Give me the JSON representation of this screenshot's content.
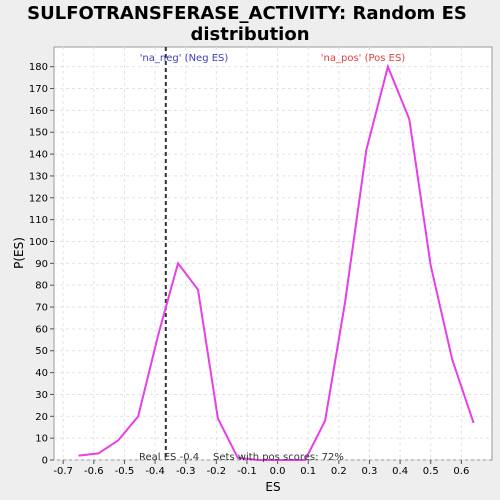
{
  "chart_data": {
    "type": "line",
    "title_line1": "SULFOTRANSFERASE_ACTIVITY: Random ES",
    "title_line2": "distribution",
    "xlabel": "ES",
    "ylabel": "P(ES)",
    "xlim": [
      -0.73,
      0.7
    ],
    "ylim": [
      0,
      189
    ],
    "x_ticks": [
      -0.7,
      -0.6,
      -0.5,
      -0.4,
      -0.3,
      -0.2,
      -0.1,
      0.0,
      0.1,
      0.2,
      0.3,
      0.4,
      0.5,
      0.6
    ],
    "x_tick_labels": [
      "-0.7",
      "-0.6",
      "-0.5",
      "-0.4",
      "-0.3",
      "-0.2",
      "-0.1",
      "0.0",
      "0.1",
      "0.2",
      "0.3",
      "0.4",
      "0.5",
      "0.6"
    ],
    "y_ticks": [
      0,
      10,
      20,
      30,
      40,
      50,
      60,
      70,
      80,
      90,
      100,
      110,
      120,
      130,
      140,
      150,
      160,
      170,
      180
    ],
    "grid": true,
    "series": [
      {
        "color": "#e640e6",
        "x": [
          -0.65,
          -0.585,
          -0.52,
          -0.455,
          -0.39,
          -0.325,
          -0.26,
          -0.195,
          -0.13,
          -0.065,
          0.0,
          0.09,
          0.155,
          0.22,
          0.29,
          0.36,
          0.43,
          0.5,
          0.57,
          0.64
        ],
        "y": [
          2,
          3,
          9,
          20,
          57,
          90,
          78,
          19,
          1,
          0,
          0,
          0,
          18,
          72,
          142,
          180,
          156,
          89,
          46,
          17
        ]
      }
    ],
    "vline": {
      "x": -0.365,
      "color": "#333333",
      "dash": "4,3"
    },
    "annotations": {
      "na_neg": {
        "text": "'na_neg' (Neg ES)",
        "color": "#4040c0"
      },
      "na_pos": {
        "text": "'na_pos' (Pos ES)",
        "color": "#e04040"
      },
      "real_es": {
        "text": "Real ES -0.4",
        "color": "#333333"
      },
      "pos_scores": {
        "text": "Sets with pos scores: 72%",
        "color": "#333333"
      }
    }
  }
}
